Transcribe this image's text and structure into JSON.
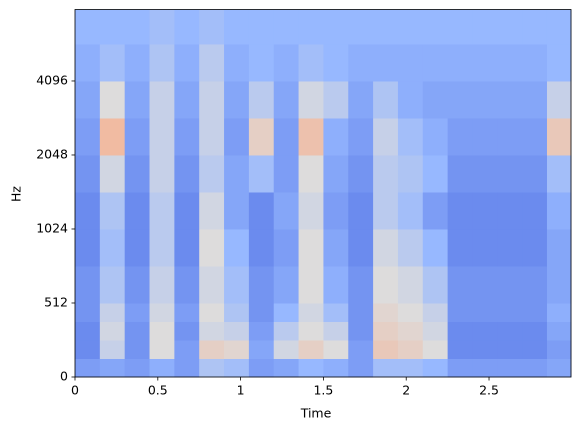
{
  "chart_data": {
    "type": "spectrogram",
    "xlabel": "Time",
    "ylabel": "Hz",
    "xlim": [
      0,
      2.995
    ],
    "xticks": [
      0,
      0.5,
      1,
      1.5,
      2,
      2.5
    ],
    "ylim": [
      0,
      8000
    ],
    "yticks": [
      0,
      512,
      1024,
      2048,
      4096
    ],
    "yscale": "symlog",
    "linthresh": 512,
    "colormap": "coolwarm",
    "clim": [
      -80,
      0
    ],
    "x": [
      0,
      0.15,
      0.3,
      0.45,
      0.6,
      0.75,
      0.9,
      1.05,
      1.2,
      1.35,
      1.5,
      1.65,
      1.8,
      1.95,
      2.1,
      2.25,
      2.4,
      2.55,
      2.7,
      2.85,
      2.995
    ],
    "y": [
      0,
      128,
      256,
      384,
      512,
      724,
      1024,
      1448,
      2048,
      2896,
      4096,
      5793,
      8000
    ],
    "values": [
      [
        -58,
        -56,
        -58,
        -54,
        -58,
        -48,
        -50,
        -58,
        -56,
        -52,
        -54,
        -58,
        -50,
        -50,
        -52,
        -58,
        -58,
        -58,
        -58,
        -56
      ],
      [
        -62,
        -44,
        -60,
        -40,
        -58,
        -36,
        -38,
        -56,
        -42,
        -36,
        -40,
        -58,
        -34,
        -36,
        -40,
        -62,
        -62,
        -62,
        -62,
        -58
      ],
      [
        -62,
        -42,
        -60,
        -40,
        -60,
        -42,
        -44,
        -58,
        -46,
        -40,
        -44,
        -60,
        -36,
        -38,
        -42,
        -62,
        -62,
        -62,
        -62,
        -56
      ],
      [
        -60,
        -44,
        -58,
        -42,
        -58,
        -40,
        -48,
        -60,
        -52,
        -42,
        -50,
        -60,
        -38,
        -40,
        -44,
        -60,
        -60,
        -60,
        -60,
        -54
      ],
      [
        -60,
        -48,
        -60,
        -44,
        -60,
        -42,
        -50,
        -60,
        -56,
        -40,
        -54,
        -60,
        -40,
        -42,
        -48,
        -60,
        -60,
        -60,
        -60,
        -56
      ],
      [
        -62,
        -50,
        -62,
        -46,
        -62,
        -40,
        -52,
        -62,
        -58,
        -40,
        -56,
        -62,
        -42,
        -46,
        -52,
        -62,
        -62,
        -62,
        -62,
        -56
      ],
      [
        -62,
        -48,
        -62,
        -46,
        -62,
        -42,
        -56,
        -62,
        -56,
        -42,
        -58,
        -62,
        -46,
        -50,
        -58,
        -62,
        -62,
        -62,
        -62,
        -54
      ],
      [
        -60,
        -42,
        -60,
        -44,
        -60,
        -46,
        -56,
        -50,
        -58,
        -40,
        -56,
        -60,
        -46,
        -48,
        -52,
        -60,
        -60,
        -60,
        -60,
        -50
      ],
      [
        -58,
        -30,
        -58,
        -44,
        -58,
        -44,
        -58,
        -36,
        -58,
        -32,
        -54,
        -58,
        -44,
        -50,
        -54,
        -58,
        -58,
        -58,
        -58,
        -34
      ],
      [
        -56,
        -40,
        -56,
        -44,
        -56,
        -44,
        -56,
        -46,
        -56,
        -42,
        -46,
        -56,
        -48,
        -54,
        -56,
        -56,
        -56,
        -56,
        -56,
        -44
      ],
      [
        -54,
        -50,
        -54,
        -48,
        -54,
        -46,
        -54,
        -52,
        -54,
        -50,
        -52,
        -54,
        -54,
        -54,
        -54,
        -54,
        -54,
        -54,
        -54,
        -52
      ],
      [
        -52,
        -52,
        -52,
        -50,
        -52,
        -50,
        -52,
        -52,
        -52,
        -52,
        -52,
        -52,
        -52,
        -52,
        -52,
        -52,
        -52,
        -52,
        -52,
        -52
      ]
    ]
  }
}
